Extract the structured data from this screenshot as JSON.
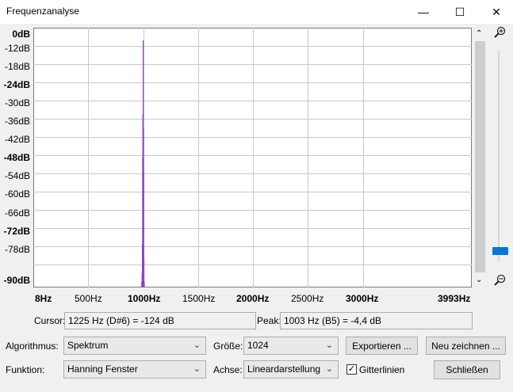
{
  "window": {
    "title": "Frequenzanalyse",
    "minimize": "—",
    "maximize": "☐",
    "close": "✕"
  },
  "yaxis": [
    "0dB",
    "-12dB",
    "-18dB",
    "-24dB",
    "-30dB",
    "-36dB",
    "-42dB",
    "-48dB",
    "-54dB",
    "-60dB",
    "-66dB",
    "-72dB",
    "-78dB",
    "-90dB"
  ],
  "xaxis": [
    "8Hz",
    "500Hz",
    "1000Hz",
    "1500Hz",
    "2000Hz",
    "2500Hz",
    "3000Hz",
    "3993Hz"
  ],
  "zoom": {
    "in_icon": "zoom-in-icon",
    "out_icon": "zoom-out-icon",
    "level": 0.95
  },
  "chart_data": {
    "type": "line",
    "xlim": [
      8,
      3993
    ],
    "ylim": [
      -90,
      0
    ],
    "grid": true,
    "series": [
      {
        "values": [
          [
            990,
            -88
          ],
          [
            993,
            -85
          ],
          [
            996,
            -75
          ],
          [
            998,
            -45
          ],
          [
            1000,
            -30
          ],
          [
            1003,
            -4.4
          ],
          [
            1006,
            -35
          ],
          [
            1008,
            -50
          ],
          [
            1010,
            -80
          ],
          [
            1013,
            -88
          ]
        ]
      }
    ]
  },
  "status": {
    "cursor_label": "Cursor:",
    "cursor_value": "1225 Hz (D#6) = -124 dB",
    "peak_label": "Peak:",
    "peak_value": "1003 Hz (B5) = -4,4 dB"
  },
  "controls": {
    "algorithm_label": "Algorithmus:",
    "algorithm_value": "Spektrum",
    "size_label": "Größe:",
    "size_value": "1024",
    "export_button": "Exportieren ...",
    "redraw_button": "Neu zeichnen ...",
    "function_label": "Funktion:",
    "function_value": "Hanning Fenster",
    "axis_label": "Achse:",
    "axis_value": "Lineardarstellung",
    "grid_checkbox_label": "Gitterlinien",
    "grid_checked": true,
    "close_button": "Schließen"
  }
}
